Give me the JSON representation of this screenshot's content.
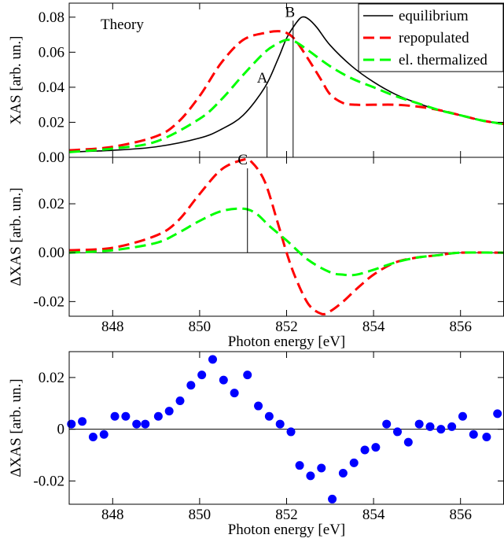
{
  "chart_data": [
    {
      "type": "line",
      "annotation": "Theory",
      "ylabel": "XAS [arb. un.]",
      "xlim": [
        847,
        857
      ],
      "ylim": [
        0,
        0.088
      ],
      "x_ticks": [
        848,
        850,
        852,
        854,
        856
      ],
      "y_ticks": [
        0,
        0.02,
        0.04,
        0.06,
        0.08
      ],
      "y_tick_labels": [
        "0.00",
        "0.02",
        "0.04",
        "0.06",
        "0.08"
      ],
      "legend_position": "top-right",
      "series": [
        {
          "name": "equilibrium",
          "color": "#000000",
          "dash": "solid",
          "x": [
            847,
            848,
            849,
            850,
            850.5,
            851,
            851.5,
            851.8,
            852,
            852.2,
            852.35,
            852.5,
            852.7,
            853,
            853.5,
            854,
            854.5,
            855,
            855.5,
            856,
            856.5,
            857
          ],
          "y": [
            0.003,
            0.004,
            0.006,
            0.011,
            0.016,
            0.024,
            0.04,
            0.056,
            0.068,
            0.076,
            0.08,
            0.079,
            0.074,
            0.064,
            0.052,
            0.043,
            0.036,
            0.031,
            0.027,
            0.024,
            0.021,
            0.019
          ]
        },
        {
          "name": "repopulated",
          "color": "#ff0000",
          "dash": "dashed",
          "x": [
            847,
            848,
            849,
            849.5,
            850,
            850.5,
            851,
            851.5,
            851.8,
            852,
            852.2,
            852.5,
            852.8,
            853,
            853.3,
            853.6,
            854,
            854.5,
            855,
            855.5,
            856,
            856.5,
            857
          ],
          "y": [
            0.004,
            0.006,
            0.012,
            0.02,
            0.035,
            0.054,
            0.067,
            0.071,
            0.072,
            0.071,
            0.067,
            0.056,
            0.044,
            0.036,
            0.031,
            0.03,
            0.03,
            0.03,
            0.029,
            0.027,
            0.024,
            0.021,
            0.019
          ]
        },
        {
          "name": "el. thermalized",
          "color": "#00ff00",
          "dash": "dashed",
          "x": [
            847,
            848,
            849,
            850,
            850.5,
            851,
            851.5,
            851.8,
            852,
            852.2,
            852.5,
            853,
            853.5,
            854,
            854.5,
            855,
            855.5,
            856,
            856.5,
            857
          ],
          "y": [
            0.003,
            0.005,
            0.009,
            0.022,
            0.033,
            0.047,
            0.06,
            0.065,
            0.067,
            0.066,
            0.061,
            0.052,
            0.045,
            0.04,
            0.035,
            0.031,
            0.027,
            0.024,
            0.021,
            0.019
          ]
        }
      ],
      "markers": [
        {
          "label": "A",
          "x": 851.55,
          "y_top": 0.0405
        },
        {
          "label": "B",
          "x": 852.15,
          "y_top": 0.078
        }
      ]
    },
    {
      "type": "line",
      "ylabel": "ΔXAS [arb. un.]",
      "xlabel": "Photon energy [eV]",
      "xlim": [
        847,
        857
      ],
      "ylim": [
        -0.026,
        0.039
      ],
      "x_ticks": [
        848,
        850,
        852,
        854,
        856
      ],
      "y_ticks": [
        -0.02,
        0,
        0.02
      ],
      "y_tick_labels": [
        "-0.02",
        "0.00",
        "0.02"
      ],
      "series": [
        {
          "name": "repopulated",
          "color": "#ff0000",
          "dash": "dashed",
          "x": [
            847,
            848,
            849,
            849.5,
            850,
            850.5,
            851,
            851.2,
            851.5,
            851.8,
            852,
            852.2,
            852.5,
            852.8,
            853,
            853.3,
            853.6,
            854,
            854.5,
            855,
            855.5,
            856,
            857
          ],
          "y": [
            0.001,
            0.002,
            0.007,
            0.013,
            0.024,
            0.034,
            0.038,
            0.037,
            0.029,
            0.012,
            0.0,
            -0.01,
            -0.021,
            -0.025,
            -0.024,
            -0.02,
            -0.015,
            -0.009,
            -0.004,
            -0.002,
            -0.001,
            0.0,
            0.0
          ]
        },
        {
          "name": "el. thermalized",
          "color": "#00ff00",
          "dash": "dashed",
          "x": [
            847,
            848,
            849,
            849.5,
            850,
            850.5,
            851,
            851.3,
            851.6,
            852,
            852.5,
            853,
            853.3,
            853.6,
            854,
            854.5,
            855,
            855.5,
            856,
            857
          ],
          "y": [
            0.0,
            0.001,
            0.004,
            0.008,
            0.013,
            0.017,
            0.018,
            0.016,
            0.011,
            0.005,
            -0.003,
            -0.008,
            -0.009,
            -0.009,
            -0.007,
            -0.004,
            -0.002,
            -0.001,
            0.0,
            0.0
          ]
        }
      ],
      "markers": [
        {
          "label": "C",
          "x": 851.1,
          "y_top": 0.0345,
          "y_bottom": 0
        }
      ]
    },
    {
      "type": "scatter",
      "ylabel": "ΔXAS [arb. un.]",
      "xlabel": "Photon energy [eV]",
      "xlim": [
        847,
        857
      ],
      "ylim": [
        -0.029,
        0.03
      ],
      "x_ticks": [
        848,
        850,
        852,
        854,
        856
      ],
      "y_ticks": [
        -0.02,
        0,
        0.02
      ],
      "y_tick_labels": [
        "-0.02",
        "0",
        "0.02"
      ],
      "series": [
        {
          "color": "#0000ff",
          "x": [
            847.05,
            847.3,
            847.55,
            847.8,
            848.05,
            848.3,
            848.55,
            848.75,
            849.05,
            849.3,
            849.55,
            849.8,
            850.05,
            850.3,
            850.55,
            850.8,
            851.1,
            851.35,
            851.6,
            851.85,
            852.1,
            852.3,
            852.55,
            852.8,
            853.05,
            853.3,
            853.55,
            853.8,
            854.05,
            854.3,
            854.55,
            854.8,
            855.05,
            855.3,
            855.55,
            855.8,
            856.05,
            856.3,
            856.6,
            856.85
          ],
          "y": [
            0.002,
            0.003,
            -0.003,
            -0.002,
            0.005,
            0.005,
            0.002,
            0.002,
            0.005,
            0.007,
            0.011,
            0.017,
            0.021,
            0.027,
            0.019,
            0.014,
            0.021,
            0.009,
            0.005,
            0.002,
            -0.001,
            -0.014,
            -0.018,
            -0.015,
            -0.027,
            -0.017,
            -0.013,
            -0.008,
            -0.007,
            0.002,
            -0.001,
            -0.005,
            0.002,
            0.001,
            0.0,
            0.001,
            0.005,
            -0.002,
            -0.003,
            0.006
          ]
        }
      ]
    }
  ]
}
